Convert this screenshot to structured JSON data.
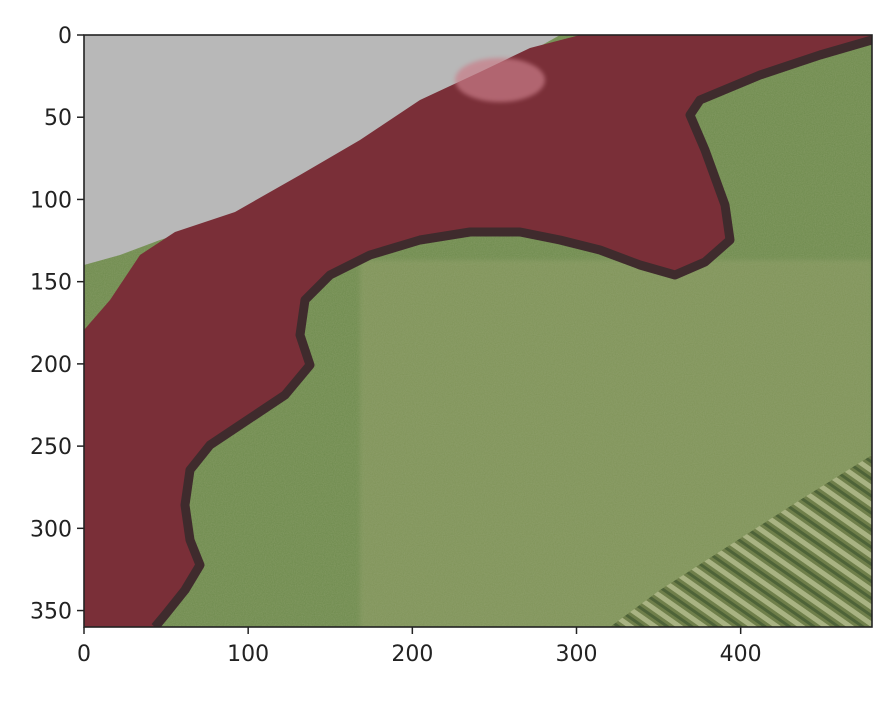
{
  "chart_data": {
    "type": "heatmap",
    "title": "",
    "xlabel": "",
    "ylabel": "",
    "xlim": [
      0,
      480
    ],
    "ylim": [
      360,
      0
    ],
    "x_ticks": [
      0,
      100,
      200,
      300,
      400
    ],
    "y_ticks": [
      0,
      50,
      100,
      150,
      200,
      250,
      300,
      350
    ],
    "image": "segmentation overlay: red mask over shrubs on grass field",
    "colors": {
      "mask": "#7a2f38",
      "grass": "#6d8a4c",
      "sky": "#b8b8b8",
      "edge": "#3f2b2d",
      "stripes": "#8c9a66"
    }
  }
}
